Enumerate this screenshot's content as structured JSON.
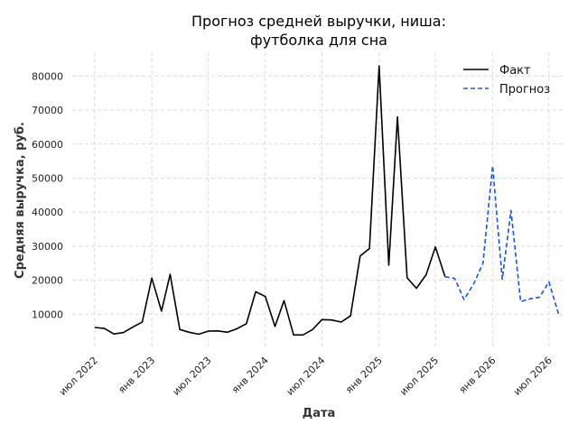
{
  "chart_data": {
    "type": "line",
    "title": "Прогноз средней выручки, ниша:\nфутболка для сна",
    "xlabel": "Дата",
    "ylabel": "Средняя выручка, руб.",
    "ylim": [
      0,
      87000
    ],
    "xlim": [
      "2022-04-20",
      "2026-08-20"
    ],
    "grid": true,
    "legend_position": "top-right",
    "y_ticks": [
      10000,
      20000,
      30000,
      40000,
      50000,
      60000,
      70000,
      80000
    ],
    "x_ticks": [
      {
        "date": "2022-07-01",
        "label": "июл 2022"
      },
      {
        "date": "2023-01-01",
        "label": "янв 2023"
      },
      {
        "date": "2023-07-01",
        "label": "июл 2023"
      },
      {
        "date": "2024-01-01",
        "label": "янв 2024"
      },
      {
        "date": "2024-07-01",
        "label": "июл 2024"
      },
      {
        "date": "2025-01-01",
        "label": "янв 2025"
      },
      {
        "date": "2025-07-01",
        "label": "июл 2025"
      },
      {
        "date": "2026-01-01",
        "label": "янв 2026"
      },
      {
        "date": "2026-07-01",
        "label": "июл 2026"
      }
    ],
    "series": [
      {
        "name": "Факт",
        "color": "#000000",
        "style": "solid",
        "points": [
          {
            "x": "2022-07-01",
            "y": 6100
          },
          {
            "x": "2022-08-01",
            "y": 5800
          },
          {
            "x": "2022-09-01",
            "y": 4200
          },
          {
            "x": "2022-10-01",
            "y": 4600
          },
          {
            "x": "2022-11-01",
            "y": 6200
          },
          {
            "x": "2022-12-01",
            "y": 7700
          },
          {
            "x": "2023-01-01",
            "y": 20600
          },
          {
            "x": "2023-02-01",
            "y": 10900
          },
          {
            "x": "2023-03-01",
            "y": 21700
          },
          {
            "x": "2023-04-01",
            "y": 5500
          },
          {
            "x": "2023-05-01",
            "y": 4700
          },
          {
            "x": "2023-06-01",
            "y": 4100
          },
          {
            "x": "2023-07-01",
            "y": 5000
          },
          {
            "x": "2023-08-01",
            "y": 5100
          },
          {
            "x": "2023-09-01",
            "y": 4700
          },
          {
            "x": "2023-10-01",
            "y": 5700
          },
          {
            "x": "2023-11-01",
            "y": 7200
          },
          {
            "x": "2023-12-01",
            "y": 16600
          },
          {
            "x": "2024-01-01",
            "y": 15200
          },
          {
            "x": "2024-02-01",
            "y": 6400
          },
          {
            "x": "2024-03-01",
            "y": 14000
          },
          {
            "x": "2024-04-01",
            "y": 3900
          },
          {
            "x": "2024-05-01",
            "y": 3900
          },
          {
            "x": "2024-06-01",
            "y": 5500
          },
          {
            "x": "2024-07-01",
            "y": 8400
          },
          {
            "x": "2024-08-01",
            "y": 8300
          },
          {
            "x": "2024-09-01",
            "y": 7700
          },
          {
            "x": "2024-10-01",
            "y": 9500
          },
          {
            "x": "2024-11-01",
            "y": 27100
          },
          {
            "x": "2024-12-01",
            "y": 29300
          },
          {
            "x": "2025-01-01",
            "y": 83000
          },
          {
            "x": "2025-02-01",
            "y": 24400
          },
          {
            "x": "2025-03-01",
            "y": 68000
          },
          {
            "x": "2025-04-01",
            "y": 20700
          },
          {
            "x": "2025-05-01",
            "y": 17600
          },
          {
            "x": "2025-06-01",
            "y": 21600
          },
          {
            "x": "2025-07-01",
            "y": 29800
          },
          {
            "x": "2025-08-01",
            "y": 21000
          }
        ]
      },
      {
        "name": "Прогноз",
        "color": "#1a56db",
        "style": "dashed",
        "points": [
          {
            "x": "2025-08-01",
            "y": 21000
          },
          {
            "x": "2025-09-01",
            "y": 20500
          },
          {
            "x": "2025-10-01",
            "y": 14300
          },
          {
            "x": "2025-11-01",
            "y": 18900
          },
          {
            "x": "2025-12-01",
            "y": 25000
          },
          {
            "x": "2026-01-01",
            "y": 53600
          },
          {
            "x": "2026-02-01",
            "y": 20300
          },
          {
            "x": "2026-03-01",
            "y": 40500
          },
          {
            "x": "2026-04-01",
            "y": 13700
          },
          {
            "x": "2026-05-01",
            "y": 14500
          },
          {
            "x": "2026-06-01",
            "y": 15000
          },
          {
            "x": "2026-07-01",
            "y": 19500
          },
          {
            "x": "2026-08-01",
            "y": 10000
          }
        ]
      }
    ]
  }
}
